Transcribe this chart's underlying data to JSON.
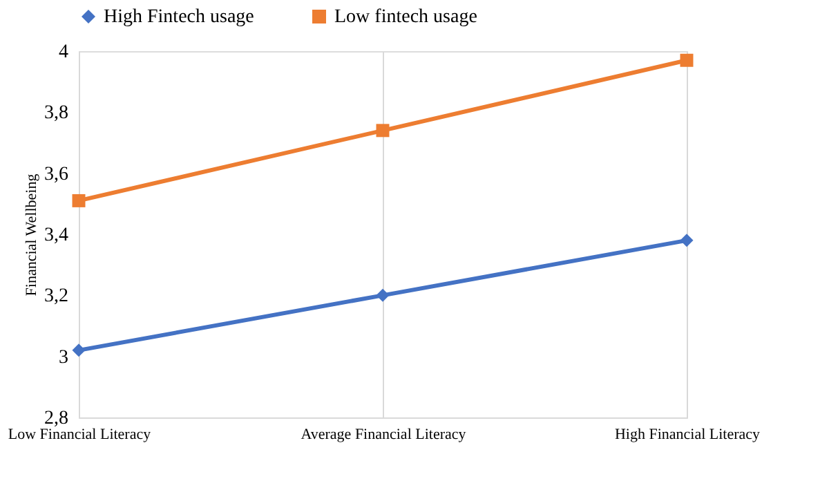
{
  "chart_data": {
    "type": "line",
    "ylabel": "Financial Wellbeing",
    "categories": [
      "Low Financial Literacy",
      "Average Financial Literacy",
      "High Financial Literacy"
    ],
    "series": [
      {
        "name": "High Fintech usage",
        "color": "#4472c4",
        "marker": "diamond",
        "values": [
          3.02,
          3.2,
          3.38
        ]
      },
      {
        "name": "Low fintech usage",
        "color": "#ed7d31",
        "marker": "square",
        "values": [
          3.51,
          3.74,
          3.97
        ]
      }
    ],
    "ylim": [
      2.8,
      4
    ],
    "yticks": [
      {
        "value": 2.8,
        "label": "2,8"
      },
      {
        "value": 3,
        "label": "3"
      },
      {
        "value": 3.2,
        "label": "3,2"
      },
      {
        "value": 3.4,
        "label": "3,4"
      },
      {
        "value": 3.6,
        "label": "3,6"
      },
      {
        "value": 3.8,
        "label": "3,8"
      },
      {
        "value": 4,
        "label": "4"
      }
    ],
    "grid": "x",
    "legend": "top",
    "line_style": "solid"
  }
}
